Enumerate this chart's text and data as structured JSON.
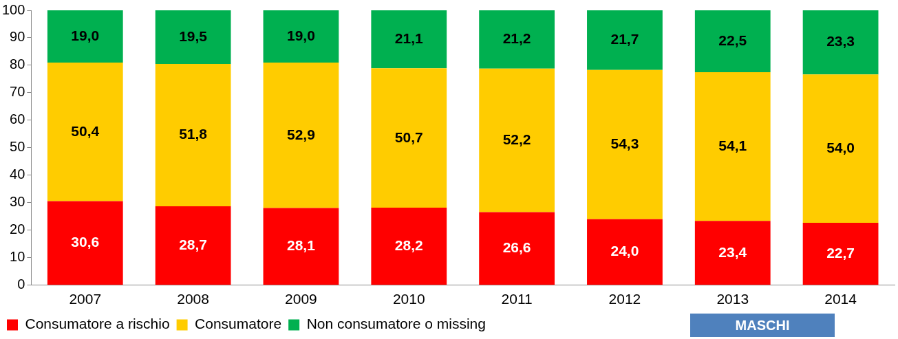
{
  "chart_data": {
    "type": "bar",
    "stacked": true,
    "categories": [
      "2007",
      "2008",
      "2009",
      "2010",
      "2011",
      "2012",
      "2013",
      "2014"
    ],
    "series": [
      {
        "name": "Consumatore a rischio",
        "color": "#ff0000",
        "values": [
          30.6,
          28.7,
          28.1,
          28.2,
          26.6,
          24.0,
          23.4,
          22.7
        ],
        "value_labels": [
          "30,6",
          "28,7",
          "28,1",
          "28,2",
          "26,6",
          "24,0",
          "23,4",
          "22,7"
        ]
      },
      {
        "name": "Consumatore",
        "color": "#ffcc00",
        "values": [
          50.4,
          51.8,
          52.9,
          50.7,
          52.2,
          54.3,
          54.1,
          54.0
        ],
        "value_labels": [
          "50,4",
          "51,8",
          "52,9",
          "50,7",
          "52,2",
          "54,3",
          "54,1",
          "54,0"
        ]
      },
      {
        "name": "Non consumatore o missing",
        "color": "#00b050",
        "values": [
          19.0,
          19.5,
          19.0,
          21.1,
          21.2,
          21.7,
          22.5,
          23.3
        ],
        "value_labels": [
          "19,0",
          "19,5",
          "19,0",
          "21,1",
          "21,2",
          "21,7",
          "22,5",
          "23,3"
        ]
      }
    ],
    "ylim": [
      0,
      100
    ],
    "yticks": [
      0,
      10,
      20,
      30,
      40,
      50,
      60,
      70,
      80,
      90,
      100
    ],
    "grid": false,
    "legend": "bottom left",
    "annotations": [
      "MASCHI"
    ]
  }
}
